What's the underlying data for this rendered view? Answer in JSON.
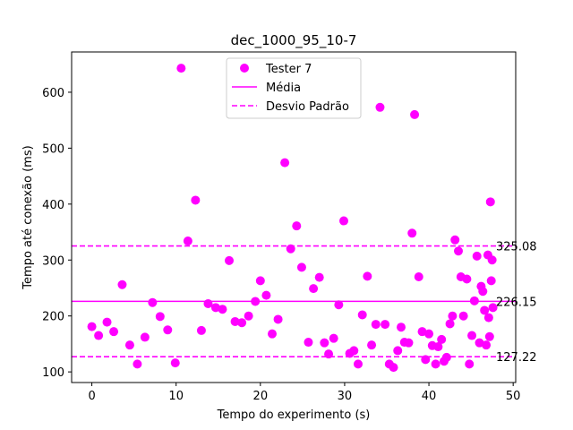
{
  "chart_data": {
    "type": "scatter",
    "title": "dec_1000_95_10-7",
    "xlabel": "Tempo do experimento (s)",
    "ylabel": "Tempo até conexão (ms)",
    "xlim": [
      -2.4,
      50.3
    ],
    "ylim": [
      81,
      672
    ],
    "xticks": [
      0,
      10,
      20,
      30,
      40,
      50
    ],
    "yticks": [
      100,
      200,
      300,
      400,
      500,
      600
    ],
    "grid": false,
    "legend_position": "upper-center",
    "colors": {
      "series": "#ff00ff",
      "axis": "#000000"
    },
    "series": [
      {
        "name": "Tester 7",
        "marker": "circle",
        "x": [
          0.0,
          0.8,
          1.8,
          2.6,
          3.6,
          4.5,
          5.4,
          6.3,
          7.2,
          8.1,
          9.0,
          9.9,
          10.6,
          11.4,
          12.3,
          13.0,
          13.8,
          14.7,
          15.5,
          16.3,
          17.0,
          17.8,
          18.6,
          19.4,
          20.0,
          20.7,
          21.4,
          22.1,
          22.9,
          23.6,
          24.3,
          24.9,
          25.7,
          26.3,
          27.0,
          27.6,
          28.1,
          28.7,
          29.3,
          29.9,
          30.6,
          31.1,
          31.6,
          32.1,
          32.7,
          33.2,
          33.7,
          34.2,
          34.8,
          35.3,
          35.8,
          36.3,
          36.7,
          37.1,
          37.6,
          38.0,
          38.3,
          38.8,
          39.2,
          39.6,
          40.0,
          40.4,
          40.8,
          41.1,
          41.5,
          41.8,
          42.1,
          42.5,
          42.8,
          43.1,
          43.5,
          43.8,
          44.1,
          44.5,
          44.8,
          45.1,
          45.4,
          45.7,
          46.0,
          46.2,
          46.4,
          46.6,
          46.8,
          47.0,
          47.1,
          47.2,
          47.3,
          47.4,
          47.5,
          47.6
        ],
        "y": [
          181,
          165,
          189,
          172,
          256,
          148,
          114,
          162,
          224,
          199,
          175,
          116,
          643,
          334,
          407,
          174,
          222,
          215,
          212,
          299,
          190,
          188,
          200,
          226,
          263,
          237,
          168,
          194,
          474,
          320,
          361,
          287,
          153,
          249,
          269,
          152,
          132,
          160,
          220,
          370,
          133,
          138,
          114,
          202,
          271,
          148,
          185,
          573,
          185,
          114,
          108,
          138,
          180,
          153,
          152,
          348,
          560,
          270,
          172,
          122,
          168,
          147,
          114,
          145,
          158,
          119,
          126,
          186,
          200,
          336,
          316,
          270,
          200,
          266,
          114,
          165,
          227,
          307,
          152,
          253,
          244,
          210,
          148,
          309,
          197,
          163,
          404,
          263,
          300,
          215
        ]
      }
    ],
    "lines": [
      {
        "name": "Média",
        "style": "solid",
        "y": 226.15,
        "label": "226.15"
      },
      {
        "name": "Desvio Padrão",
        "style": "dashed",
        "y": 325.08,
        "label": "325.08"
      },
      {
        "name": "",
        "style": "dashed",
        "y": 127.22,
        "label": "127.22"
      }
    ]
  }
}
